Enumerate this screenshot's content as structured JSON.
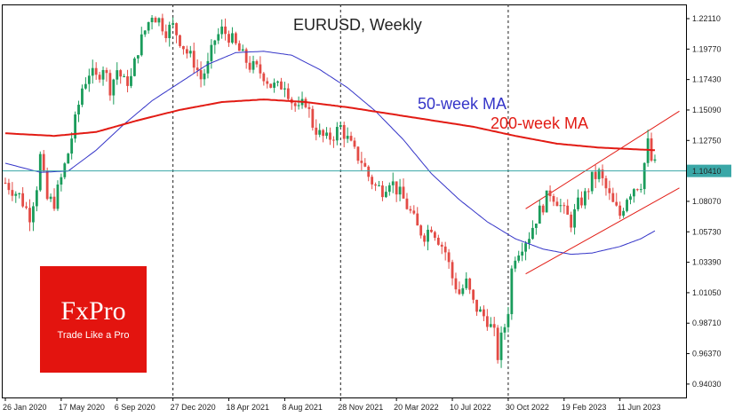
{
  "chart_data": {
    "type": "candlestick",
    "title": "EURUSD, Weekly",
    "ylim": [
      0.93,
      1.232
    ],
    "y_ticks": [
      "1.22110",
      "1.19770",
      "1.17430",
      "1.15090",
      "1.12750",
      "1.10410",
      "1.08070",
      "1.05730",
      "1.03390",
      "1.01050",
      "0.98710",
      "0.96370",
      "0.94030"
    ],
    "x_ticks": [
      {
        "label": "26 Jan 2020",
        "week": 0
      },
      {
        "label": "17 May 2020",
        "week": 16
      },
      {
        "label": "6 Sep 2020",
        "week": 32
      },
      {
        "label": "27 Dec 2020",
        "week": 48
      },
      {
        "label": "18 Apr 2021",
        "week": 64
      },
      {
        "label": "8 Aug 2021",
        "week": 80
      },
      {
        "label": "28 Nov 2021",
        "week": 96
      },
      {
        "label": "20 Mar 2022",
        "week": 112
      },
      {
        "label": "10 Jul 2022",
        "week": 128
      },
      {
        "label": "30 Oct 2022",
        "week": 144
      },
      {
        "label": "19 Feb 2023",
        "week": 160
      },
      {
        "label": "11 Jun 2023",
        "week": 176
      }
    ],
    "vertical_markers": [
      48,
      96,
      144
    ],
    "price_anchors": [
      [
        0,
        1.095
      ],
      [
        4,
        1.085
      ],
      [
        7,
        1.07
      ],
      [
        9,
        1.093
      ],
      [
        10,
        1.115
      ],
      [
        12,
        1.082
      ],
      [
        14,
        1.08
      ],
      [
        16,
        1.098
      ],
      [
        18,
        1.118
      ],
      [
        20,
        1.142
      ],
      [
        22,
        1.168
      ],
      [
        24,
        1.18
      ],
      [
        26,
        1.175
      ],
      [
        28,
        1.185
      ],
      [
        30,
        1.168
      ],
      [
        32,
        1.182
      ],
      [
        34,
        1.172
      ],
      [
        36,
        1.175
      ],
      [
        38,
        1.198
      ],
      [
        40,
        1.212
      ],
      [
        42,
        1.225
      ],
      [
        44,
        1.22
      ],
      [
        46,
        1.212
      ],
      [
        48,
        1.215
      ],
      [
        50,
        1.205
      ],
      [
        52,
        1.195
      ],
      [
        54,
        1.188
      ],
      [
        56,
        1.175
      ],
      [
        58,
        1.185
      ],
      [
        60,
        1.205
      ],
      [
        62,
        1.212
      ],
      [
        64,
        1.208
      ],
      [
        66,
        1.2
      ],
      [
        68,
        1.192
      ],
      [
        70,
        1.185
      ],
      [
        72,
        1.182
      ],
      [
        74,
        1.178
      ],
      [
        76,
        1.17
      ],
      [
        78,
        1.168
      ],
      [
        80,
        1.172
      ],
      [
        82,
        1.158
      ],
      [
        84,
        1.15
      ],
      [
        86,
        1.158
      ],
      [
        88,
        1.14
      ],
      [
        90,
        1.132
      ],
      [
        92,
        1.128
      ],
      [
        94,
        1.132
      ],
      [
        96,
        1.138
      ],
      [
        98,
        1.128
      ],
      [
        100,
        1.118
      ],
      [
        102,
        1.112
      ],
      [
        104,
        1.1
      ],
      [
        106,
        1.092
      ],
      [
        108,
        1.09
      ],
      [
        110,
        1.098
      ],
      [
        112,
        1.09
      ],
      [
        114,
        1.082
      ],
      [
        116,
        1.072
      ],
      [
        118,
        1.06
      ],
      [
        120,
        1.055
      ],
      [
        122,
        1.062
      ],
      [
        124,
        1.052
      ],
      [
        126,
        1.042
      ],
      [
        128,
        1.022
      ],
      [
        130,
        1.01
      ],
      [
        132,
        1.018
      ],
      [
        134,
        1.002
      ],
      [
        136,
        0.995
      ],
      [
        138,
        0.99
      ],
      [
        140,
        0.978
      ],
      [
        141,
        0.962
      ],
      [
        142,
        0.975
      ],
      [
        143,
        0.985
      ],
      [
        144,
        0.998
      ],
      [
        145,
        1.028
      ],
      [
        146,
        1.04
      ],
      [
        148,
        1.048
      ],
      [
        150,
        1.055
      ],
      [
        152,
        1.068
      ],
      [
        154,
        1.078
      ],
      [
        156,
        1.088
      ],
      [
        158,
        1.082
      ],
      [
        160,
        1.072
      ],
      [
        162,
        1.065
      ],
      [
        164,
        1.078
      ],
      [
        166,
        1.085
      ],
      [
        168,
        1.098
      ],
      [
        170,
        1.102
      ],
      [
        172,
        1.09
      ],
      [
        174,
        1.078
      ],
      [
        176,
        1.07
      ],
      [
        178,
        1.085
      ],
      [
        180,
        1.092
      ],
      [
        182,
        1.095
      ],
      [
        184,
        1.125
      ],
      [
        185,
        1.112
      ],
      [
        186,
        1.108
      ]
    ],
    "ma50_anchors": [
      [
        0,
        1.11
      ],
      [
        10,
        1.103
      ],
      [
        18,
        1.104
      ],
      [
        26,
        1.12
      ],
      [
        34,
        1.14
      ],
      [
        42,
        1.158
      ],
      [
        50,
        1.172
      ],
      [
        58,
        1.186
      ],
      [
        66,
        1.195
      ],
      [
        74,
        1.196
      ],
      [
        82,
        1.193
      ],
      [
        90,
        1.182
      ],
      [
        98,
        1.168
      ],
      [
        106,
        1.15
      ],
      [
        114,
        1.128
      ],
      [
        122,
        1.102
      ],
      [
        130,
        1.082
      ],
      [
        138,
        1.065
      ],
      [
        146,
        1.052
      ],
      [
        154,
        1.044
      ],
      [
        162,
        1.04
      ],
      [
        168,
        1.041
      ],
      [
        176,
        1.046
      ],
      [
        182,
        1.052
      ],
      [
        186,
        1.058
      ]
    ],
    "ma200_anchors": [
      [
        0,
        1.133
      ],
      [
        14,
        1.131
      ],
      [
        26,
        1.134
      ],
      [
        38,
        1.143
      ],
      [
        50,
        1.151
      ],
      [
        62,
        1.157
      ],
      [
        74,
        1.159
      ],
      [
        86,
        1.157
      ],
      [
        98,
        1.153
      ],
      [
        110,
        1.148
      ],
      [
        122,
        1.143
      ],
      [
        134,
        1.138
      ],
      [
        146,
        1.131
      ],
      [
        158,
        1.125
      ],
      [
        170,
        1.122
      ],
      [
        178,
        1.121
      ],
      [
        186,
        1.12
      ]
    ],
    "current_price": 1.1041,
    "current_price_label": "1.10410",
    "channel_upper": [
      [
        149,
        1.075
      ],
      [
        193,
        1.15
      ]
    ],
    "channel_lower": [
      [
        149,
        1.025
      ],
      [
        193,
        1.091
      ]
    ],
    "series": [
      {
        "name": "50-week MA",
        "color": "#3535c8"
      },
      {
        "name": "200-week MA",
        "color": "#e21b14"
      }
    ],
    "colors": {
      "up": "#1a9c5b",
      "down": "#e34b45",
      "price_line": "#3aa7a7",
      "channel": "#e21b14",
      "markers": "#222222"
    }
  },
  "logo": {
    "name": "FxPro",
    "tagline": "Trade Like a Pro"
  }
}
